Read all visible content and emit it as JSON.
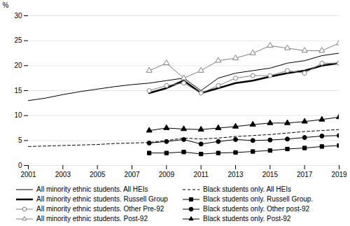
{
  "chart_data": {
    "type": "line",
    "ylabel": "%",
    "x": [
      2001,
      2002,
      2003,
      2004,
      2005,
      2006,
      2007,
      2008,
      2009,
      2010,
      2011,
      2012,
      2013,
      2014,
      2015,
      2016,
      2017,
      2018,
      2019
    ],
    "xlim": [
      2001,
      2019
    ],
    "xticks": [
      2001,
      2003,
      2005,
      2007,
      2009,
      2011,
      2013,
      2015,
      2017,
      2019
    ],
    "ylim": [
      0,
      30
    ],
    "yticks": [
      0,
      5,
      10,
      15,
      20,
      25,
      30
    ],
    "grid": true,
    "legend": "bottom",
    "series": [
      {
        "name": "All minority ethnic students. All HEIs",
        "color": "black",
        "line_style": "solid",
        "values": [
          13.0,
          13.5,
          14.2,
          14.8,
          15.3,
          15.8,
          16.2,
          16.5,
          17.0,
          17.5,
          15.0,
          17.5,
          18.5,
          19.0,
          19.5,
          20.5,
          21.0,
          22.0,
          22.5
        ]
      },
      {
        "name": "Black students only. All HEIs",
        "color": "black",
        "line_style": "dashed",
        "values": [
          3.8,
          3.9,
          4.0,
          4.1,
          4.2,
          4.4,
          4.5,
          4.6,
          5.0,
          5.5,
          5.3,
          5.5,
          5.8,
          6.0,
          6.2,
          6.5,
          6.8,
          7.0,
          7.2
        ]
      },
      {
        "name": "All minority ethnic students. Russell Group",
        "color": "black",
        "line_style": "bold",
        "values": [
          null,
          null,
          null,
          null,
          null,
          null,
          null,
          14.5,
          15.5,
          17.0,
          14.5,
          15.5,
          16.5,
          17.0,
          17.8,
          18.5,
          19.0,
          20.0,
          20.5
        ]
      },
      {
        "name": "Black students only. Russell Group.",
        "color": "black",
        "line_style": "solid",
        "marker": "square",
        "values": [
          null,
          null,
          null,
          null,
          null,
          null,
          null,
          2.5,
          2.5,
          2.7,
          2.3,
          2.5,
          2.6,
          2.8,
          3.0,
          3.3,
          3.5,
          3.8,
          4.0
        ]
      },
      {
        "name": "All minority ethnic students. Other Pre-92",
        "color": "gray",
        "line_style": "solid",
        "marker": "circle-open",
        "values": [
          null,
          null,
          null,
          null,
          null,
          null,
          null,
          15.0,
          16.0,
          16.5,
          14.5,
          16.0,
          17.5,
          18.0,
          18.0,
          19.0,
          18.5,
          20.5,
          20.5
        ]
      },
      {
        "name": "Black students only. Other post-92",
        "color": "black",
        "line_style": "solid",
        "marker": "circle",
        "values": [
          null,
          null,
          null,
          null,
          null,
          null,
          null,
          4.5,
          4.8,
          5.2,
          4.3,
          4.8,
          5.2,
          5.0,
          5.1,
          5.3,
          5.6,
          5.9,
          6.0
        ]
      },
      {
        "name": "All minority ethnic students. Post-92",
        "color": "gray",
        "line_style": "solid",
        "marker": "triangle-open",
        "values": [
          null,
          null,
          null,
          null,
          null,
          null,
          null,
          19.0,
          20.5,
          17.5,
          19.0,
          21.0,
          21.5,
          22.5,
          24.0,
          23.5,
          23.0,
          23.0,
          24.5
        ]
      },
      {
        "name": "Black students only. Post-92",
        "color": "black",
        "line_style": "solid",
        "marker": "triangle",
        "values": [
          null,
          null,
          null,
          null,
          null,
          null,
          null,
          7.0,
          7.5,
          7.3,
          7.2,
          7.5,
          7.8,
          8.2,
          8.5,
          8.5,
          8.8,
          9.2,
          9.7
        ]
      }
    ]
  }
}
